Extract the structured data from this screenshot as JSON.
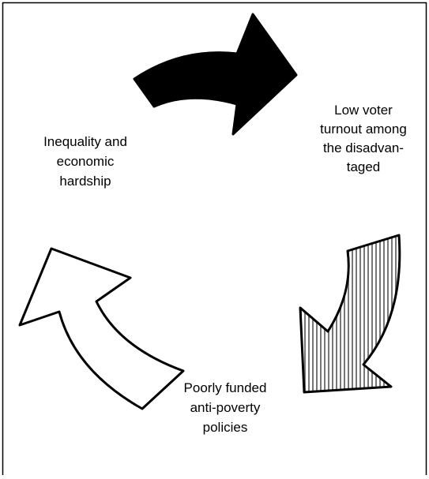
{
  "nodes": [
    {
      "lines": [
        "Inequality and",
        "economic",
        "hardship"
      ]
    },
    {
      "lines": [
        "Low voter",
        "turnout among",
        "the disadvan-",
        "taged"
      ]
    },
    {
      "lines": [
        "Poorly funded",
        "anti-poverty",
        "policies"
      ]
    }
  ]
}
